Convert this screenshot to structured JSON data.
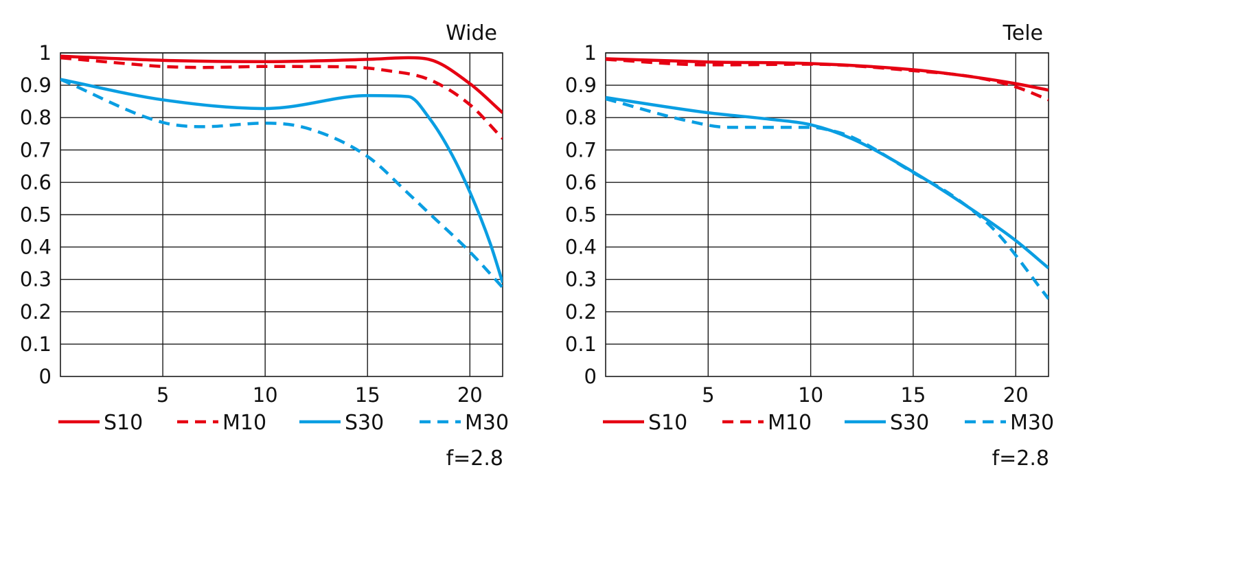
{
  "chart_data": [
    {
      "type": "line",
      "title": "Wide",
      "note": "f=2.8",
      "xlabel": "",
      "ylabel": "",
      "xlim": [
        0,
        21.6
      ],
      "ylim": [
        0,
        1
      ],
      "xticks": [
        5,
        10,
        15,
        20
      ],
      "xtick_labels": [
        "5",
        "10",
        "15",
        "20"
      ],
      "yticks": [
        0,
        0.1,
        0.2,
        0.3,
        0.4,
        0.5,
        0.6,
        0.7,
        0.8,
        0.9,
        1
      ],
      "ytick_labels": [
        "0",
        "0.1",
        "0.2",
        "0.3",
        "0.4",
        "0.5",
        "0.6",
        "0.7",
        "0.8",
        "0.9",
        "1"
      ],
      "grid": true,
      "legend_position": "bottom",
      "series": [
        {
          "name": "S10",
          "color": "#e60012",
          "dash": "solid",
          "x": [
            0,
            5,
            10,
            15,
            17,
            18,
            20,
            21.6
          ],
          "y": [
            0.99,
            0.977,
            0.973,
            0.98,
            0.985,
            0.98,
            0.905,
            0.815
          ]
        },
        {
          "name": "M10",
          "color": "#e60012",
          "dash": "dashed",
          "x": [
            0,
            3,
            5,
            7,
            10,
            14,
            16,
            18,
            20,
            21.6
          ],
          "y": [
            0.985,
            0.968,
            0.958,
            0.955,
            0.958,
            0.957,
            0.945,
            0.918,
            0.84,
            0.735
          ]
        },
        {
          "name": "S30",
          "color": "#0a9ee2",
          "dash": "solid",
          "x": [
            0,
            5,
            10,
            11,
            15,
            17,
            18,
            19,
            20,
            21,
            21.6
          ],
          "y": [
            0.918,
            0.855,
            0.828,
            0.832,
            0.868,
            0.865,
            0.8,
            0.7,
            0.57,
            0.41,
            0.29
          ]
        },
        {
          "name": "M30",
          "color": "#0a9ee2",
          "dash": "dashed",
          "x": [
            0,
            5,
            7,
            10,
            12,
            15,
            17,
            18,
            20,
            21.6
          ],
          "y": [
            0.918,
            0.785,
            0.772,
            0.783,
            0.768,
            0.68,
            0.565,
            0.505,
            0.385,
            0.275
          ]
        }
      ]
    },
    {
      "type": "line",
      "title": "Tele",
      "note": "f=2.8",
      "xlabel": "",
      "ylabel": "",
      "xlim": [
        0,
        21.6
      ],
      "ylim": [
        0,
        1
      ],
      "xticks": [
        5,
        10,
        15,
        20
      ],
      "xtick_labels": [
        "5",
        "10",
        "15",
        "20"
      ],
      "yticks": [
        0,
        0.1,
        0.2,
        0.3,
        0.4,
        0.5,
        0.6,
        0.7,
        0.8,
        0.9,
        1
      ],
      "ytick_labels": [
        "0",
        "0.1",
        "0.2",
        "0.3",
        "0.4",
        "0.5",
        "0.6",
        "0.7",
        "0.8",
        "0.9",
        "1"
      ],
      "grid": true,
      "legend_position": "bottom",
      "series": [
        {
          "name": "S10",
          "color": "#e60012",
          "dash": "solid",
          "x": [
            0,
            5,
            10,
            15,
            18,
            20,
            21.6
          ],
          "y": [
            0.982,
            0.972,
            0.967,
            0.948,
            0.925,
            0.905,
            0.885
          ]
        },
        {
          "name": "M10",
          "color": "#e60012",
          "dash": "dashed",
          "x": [
            0,
            5,
            10,
            15,
            18,
            20,
            21.6
          ],
          "y": [
            0.98,
            0.963,
            0.965,
            0.945,
            0.925,
            0.895,
            0.855
          ]
        },
        {
          "name": "S30",
          "color": "#0a9ee2",
          "dash": "solid",
          "x": [
            0,
            5,
            8,
            10,
            12,
            15,
            18,
            20,
            21.6
          ],
          "y": [
            0.862,
            0.815,
            0.795,
            0.778,
            0.735,
            0.632,
            0.51,
            0.42,
            0.335
          ]
        },
        {
          "name": "M30",
          "color": "#0a9ee2",
          "dash": "dashed",
          "x": [
            0,
            4,
            6,
            8,
            10,
            11,
            12,
            15,
            17,
            19,
            21.6
          ],
          "y": [
            0.858,
            0.79,
            0.77,
            0.77,
            0.77,
            0.76,
            0.74,
            0.63,
            0.555,
            0.45,
            0.24
          ]
        }
      ]
    }
  ]
}
